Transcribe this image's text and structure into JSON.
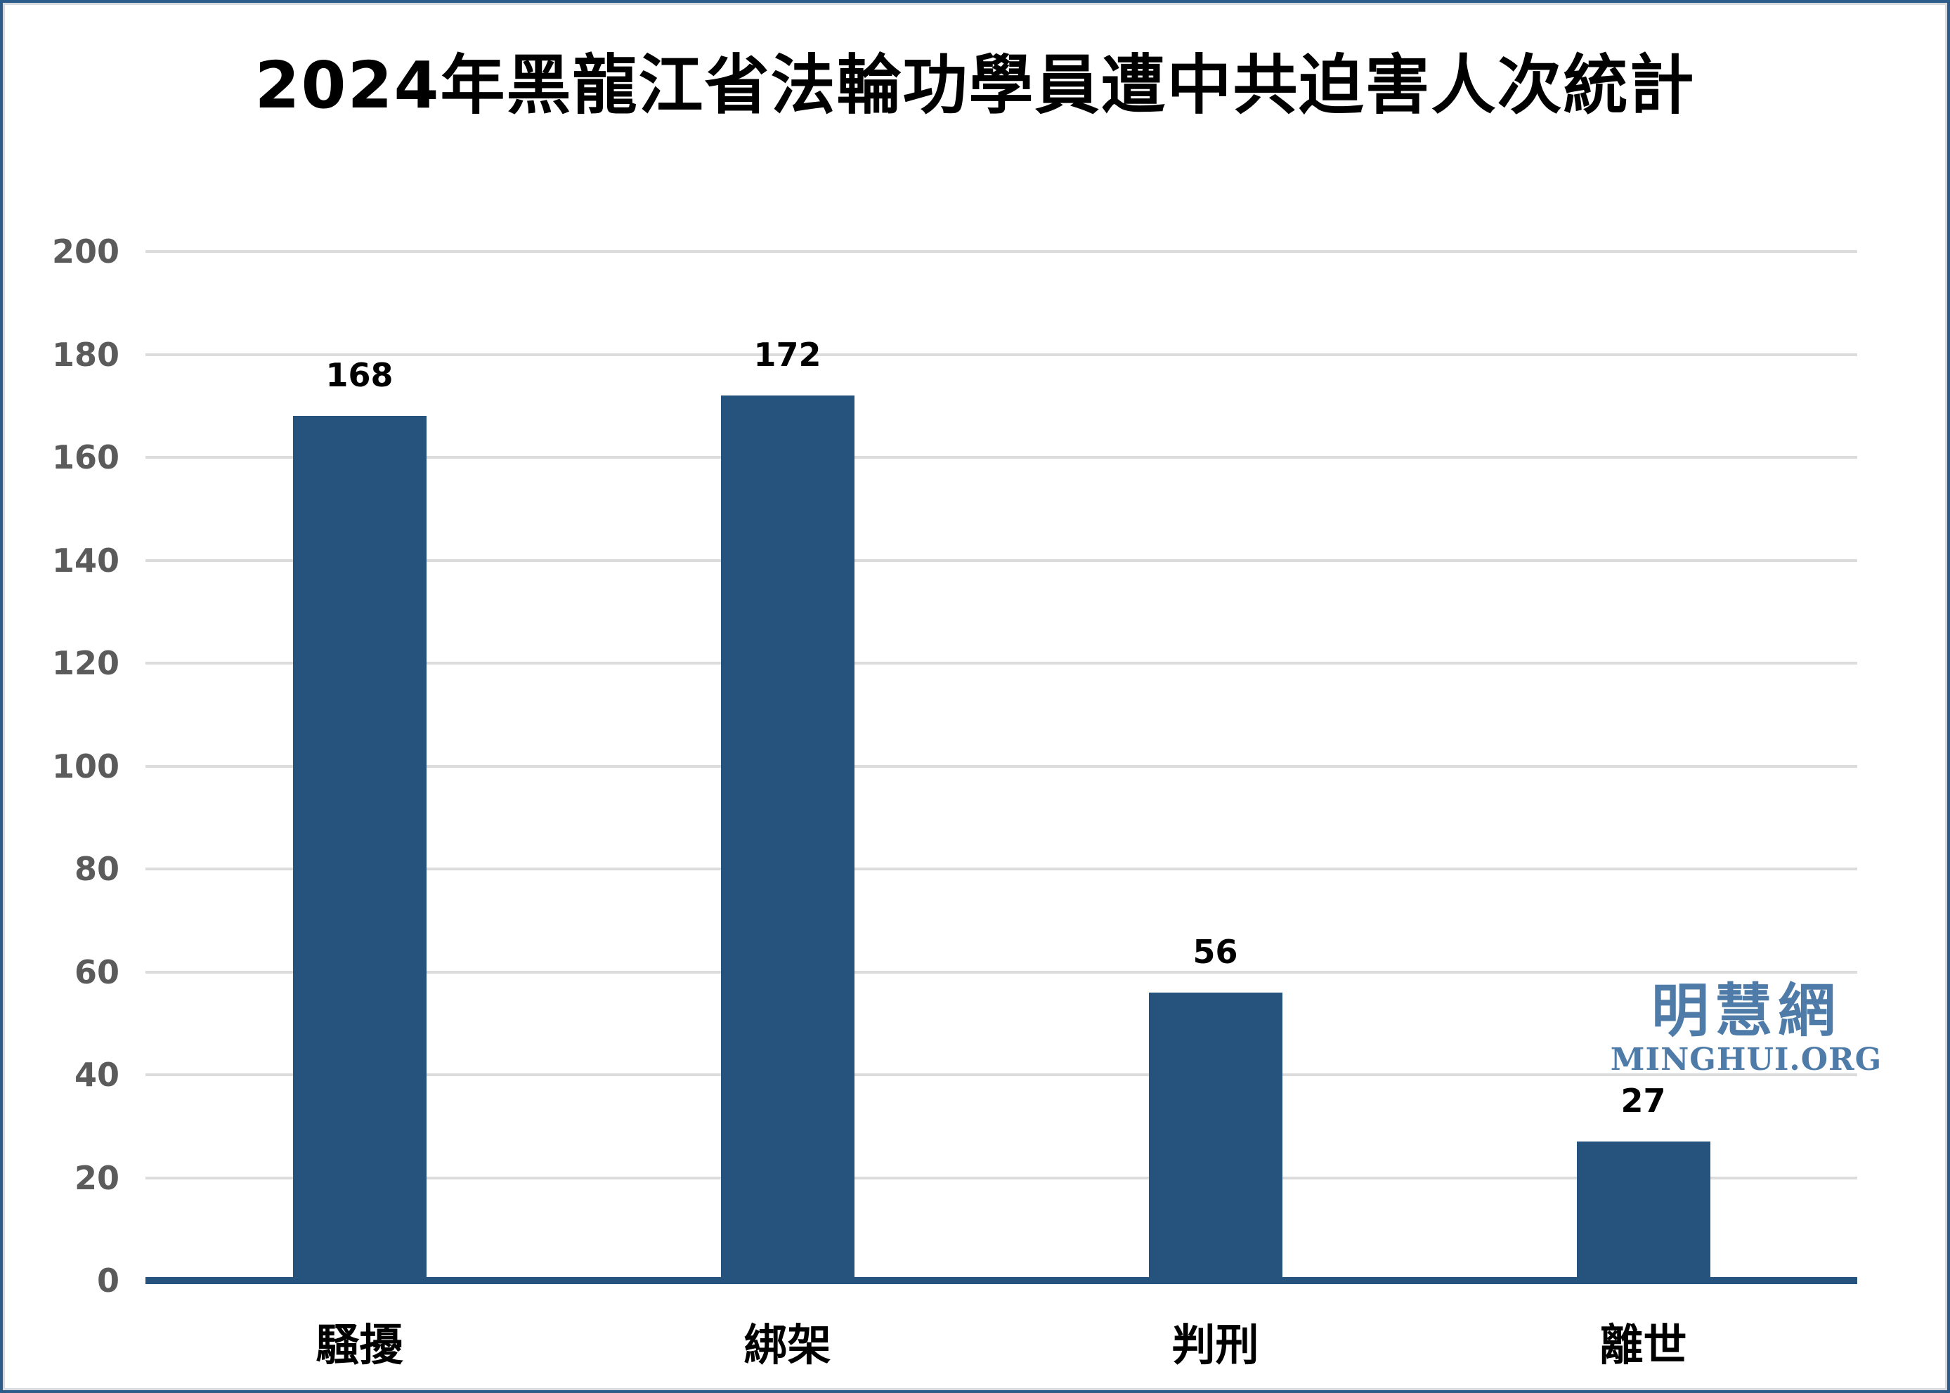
{
  "page": {
    "background_color": "#FFFFFF",
    "frame_outer_color": "#2C5C8A",
    "frame_inner_color": "#D7DBE0"
  },
  "watermark": {
    "chinese": "明慧網",
    "domain": "MINGHUI.ORG",
    "color": "#4E7BA8"
  },
  "chart_data": {
    "type": "bar",
    "title": "2024年黑龍江省法輪功學員遭中共迫害人次統計",
    "categories": [
      "騷擾",
      "綁架",
      "判刑",
      "離世"
    ],
    "values": [
      168,
      172,
      56,
      27
    ],
    "value_labels": [
      "168",
      "172",
      "56",
      "27"
    ],
    "xlabel": "",
    "ylabel": "",
    "ylim": [
      0,
      200
    ],
    "yticks": [
      0,
      20,
      40,
      60,
      80,
      100,
      120,
      140,
      160,
      180,
      200
    ],
    "grid": "horizontal-only",
    "legend": "none",
    "bar_color": "#25537D",
    "axis_line_color": "#25537D",
    "gridline_color": "#DCDCDC",
    "ytick_label_color": "#5B5B5B",
    "value_label_color": "#000000"
  }
}
